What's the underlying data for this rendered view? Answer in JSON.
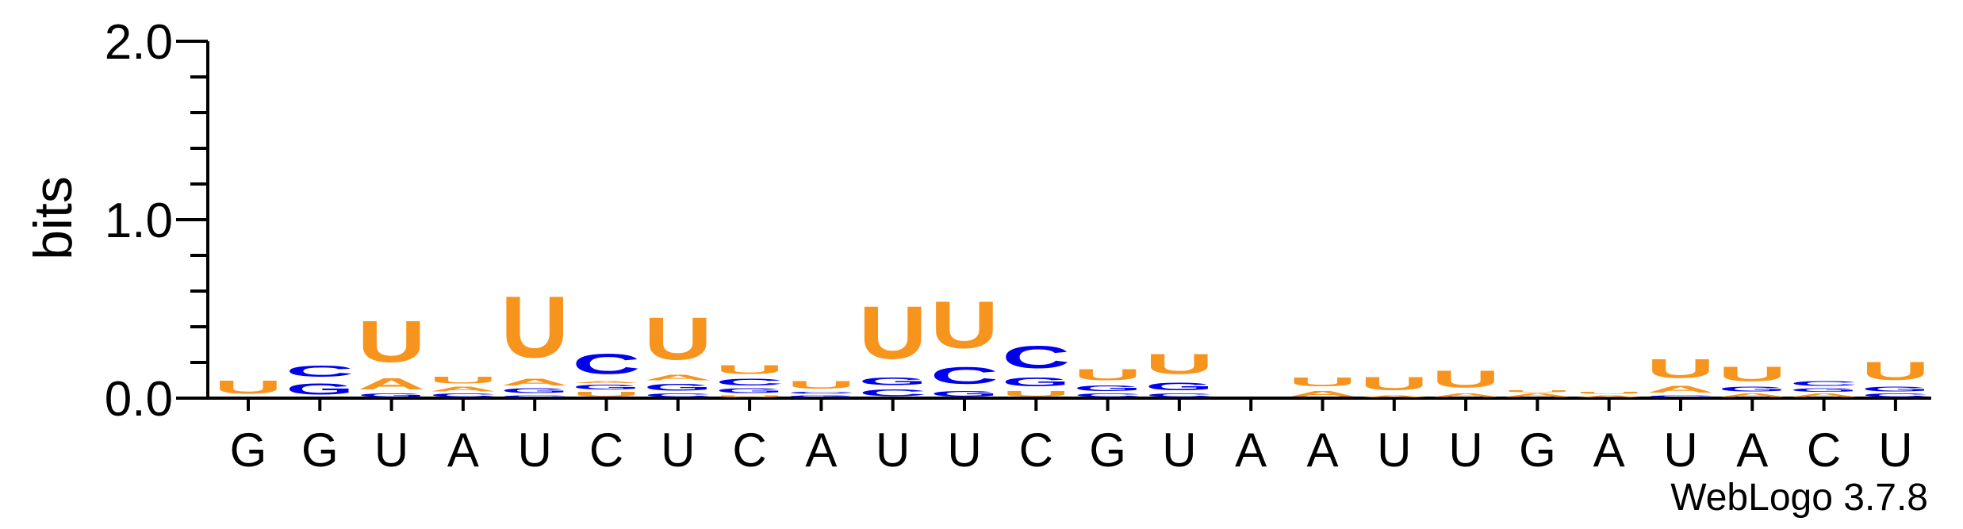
{
  "chart_data": {
    "type": "sequence-logo",
    "ylabel": "bits",
    "ylim": [
      0,
      2.0
    ],
    "yticks": [
      "0.0",
      "1.0",
      "2.0"
    ],
    "colors": {
      "U": "#f7941d",
      "C": "#0000ee",
      "G": "#0000ee",
      "A": "#f7941d"
    },
    "positions": [
      {
        "label": "G",
        "stack": [
          {
            "letter": "U",
            "bits": 0.12
          }
        ]
      },
      {
        "label": "G",
        "stack": [
          {
            "letter": "G",
            "bits": 0.1
          },
          {
            "letter": "C",
            "bits": 0.1
          }
        ]
      },
      {
        "label": "U",
        "stack": [
          {
            "letter": "G",
            "bits": 0.03
          },
          {
            "letter": "A",
            "bits": 0.1
          },
          {
            "letter": "U",
            "bits": 0.37
          }
        ]
      },
      {
        "label": "A",
        "stack": [
          {
            "letter": "C",
            "bits": 0.03
          },
          {
            "letter": "A",
            "bits": 0.04
          },
          {
            "letter": "U",
            "bits": 0.06
          }
        ]
      },
      {
        "label": "U",
        "stack": [
          {
            "letter": "C",
            "bits": 0.02
          },
          {
            "letter": "G",
            "bits": 0.04
          },
          {
            "letter": "A",
            "bits": 0.06
          },
          {
            "letter": "U",
            "bits": 0.55
          }
        ]
      },
      {
        "label": "C",
        "stack": [
          {
            "letter": "U",
            "bits": 0.04
          },
          {
            "letter": "G",
            "bits": 0.04
          },
          {
            "letter": "A",
            "bits": 0.02
          },
          {
            "letter": "C",
            "bits": 0.18
          }
        ]
      },
      {
        "label": "U",
        "stack": [
          {
            "letter": "C",
            "bits": 0.03
          },
          {
            "letter": "G",
            "bits": 0.06
          },
          {
            "letter": "A",
            "bits": 0.05
          },
          {
            "letter": "U",
            "bits": 0.38
          }
        ]
      },
      {
        "label": "C",
        "stack": [
          {
            "letter": "U",
            "bits": 0.02
          },
          {
            "letter": "G",
            "bits": 0.04
          },
          {
            "letter": "C",
            "bits": 0.06
          },
          {
            "letter": "U",
            "bits": 0.08
          }
        ]
      },
      {
        "label": "A",
        "stack": [
          {
            "letter": "G",
            "bits": 0.02
          },
          {
            "letter": "C",
            "bits": 0.02
          },
          {
            "letter": "U",
            "bits": 0.07
          }
        ]
      },
      {
        "label": "U",
        "stack": [
          {
            "letter": "C",
            "bits": 0.06
          },
          {
            "letter": "G",
            "bits": 0.07
          },
          {
            "letter": "U",
            "bits": 0.47
          }
        ]
      },
      {
        "label": "U",
        "stack": [
          {
            "letter": "G",
            "bits": 0.05
          },
          {
            "letter": "C",
            "bits": 0.15
          },
          {
            "letter": "U",
            "bits": 0.42
          }
        ]
      },
      {
        "label": "C",
        "stack": [
          {
            "letter": "U",
            "bits": 0.05
          },
          {
            "letter": "G",
            "bits": 0.08
          },
          {
            "letter": "C",
            "bits": 0.2
          }
        ]
      },
      {
        "label": "G",
        "stack": [
          {
            "letter": "C",
            "bits": 0.03
          },
          {
            "letter": "G",
            "bits": 0.05
          },
          {
            "letter": "U",
            "bits": 0.1
          }
        ]
      },
      {
        "label": "U",
        "stack": [
          {
            "letter": "C",
            "bits": 0.03
          },
          {
            "letter": "G",
            "bits": 0.07
          },
          {
            "letter": "U",
            "bits": 0.18
          }
        ]
      },
      {
        "label": "A",
        "stack": []
      },
      {
        "label": "A",
        "stack": [
          {
            "letter": "A",
            "bits": 0.05
          },
          {
            "letter": "U",
            "bits": 0.08
          }
        ]
      },
      {
        "label": "U",
        "stack": [
          {
            "letter": "A",
            "bits": 0.02
          },
          {
            "letter": "U",
            "bits": 0.12
          }
        ]
      },
      {
        "label": "U",
        "stack": [
          {
            "letter": "A",
            "bits": 0.03
          },
          {
            "letter": "U",
            "bits": 0.15
          }
        ]
      },
      {
        "label": "G",
        "stack": [
          {
            "letter": "A",
            "bits": 0.03
          },
          {
            "letter": "U",
            "bits": 0.02
          }
        ]
      },
      {
        "label": "A",
        "stack": [
          {
            "letter": "A",
            "bits": 0.02
          },
          {
            "letter": "U",
            "bits": 0.02
          }
        ]
      },
      {
        "label": "U",
        "stack": [
          {
            "letter": "C",
            "bits": 0.02
          },
          {
            "letter": "A",
            "bits": 0.06
          },
          {
            "letter": "U",
            "bits": 0.17
          }
        ]
      },
      {
        "label": "A",
        "stack": [
          {
            "letter": "A",
            "bits": 0.03
          },
          {
            "letter": "G",
            "bits": 0.04
          },
          {
            "letter": "U",
            "bits": 0.13
          }
        ]
      },
      {
        "label": "C",
        "stack": [
          {
            "letter": "A",
            "bits": 0.03
          },
          {
            "letter": "G",
            "bits": 0.03
          },
          {
            "letter": "C",
            "bits": 0.04
          }
        ]
      },
      {
        "label": "U",
        "stack": [
          {
            "letter": "C",
            "bits": 0.03
          },
          {
            "letter": "G",
            "bits": 0.04
          },
          {
            "letter": "U",
            "bits": 0.16
          }
        ]
      }
    ]
  },
  "credit": "WebLogo 3.7.8"
}
